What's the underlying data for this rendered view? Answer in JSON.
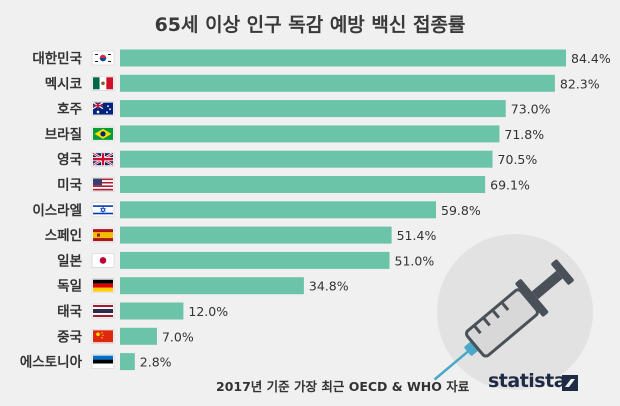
{
  "title": "65세 이상 인구 독감 예방 백신 접종률",
  "source_note": "2017년 기준 가장 최근 OECD & WHO 자료",
  "brand": "statista",
  "colors": {
    "bar": "#6cc4a8",
    "text": "#333333",
    "background": "#f0f0f0"
  },
  "chart_data": {
    "type": "bar",
    "orientation": "horizontal",
    "title": "65세 이상 인구 독감 예방 백신 접종률",
    "xlim": [
      0,
      100
    ],
    "unit": "%",
    "categories": [
      "대한민국",
      "멕시코",
      "호주",
      "브라질",
      "영국",
      "미국",
      "이스라엘",
      "스페인",
      "일본",
      "독일",
      "태국",
      "중국",
      "에스토니아"
    ],
    "flags": [
      "korea-flag",
      "mexico-flag",
      "australia-flag",
      "brazil-flag",
      "uk-flag",
      "usa-flag",
      "israel-flag",
      "spain-flag",
      "japan-flag",
      "germany-flag",
      "thailand-flag",
      "china-flag",
      "estonia-flag"
    ],
    "values": [
      84.4,
      82.3,
      73.0,
      71.8,
      70.5,
      69.1,
      59.8,
      51.4,
      51.0,
      34.8,
      12.0,
      7.0,
      2.8
    ],
    "value_labels": [
      "84.4%",
      "82.3%",
      "73.0%",
      "71.8%",
      "70.5%",
      "69.1%",
      "59.8%",
      "51.4%",
      "51.0%",
      "34.8%",
      "12.0%",
      "7.0%",
      "2.8%"
    ]
  }
}
